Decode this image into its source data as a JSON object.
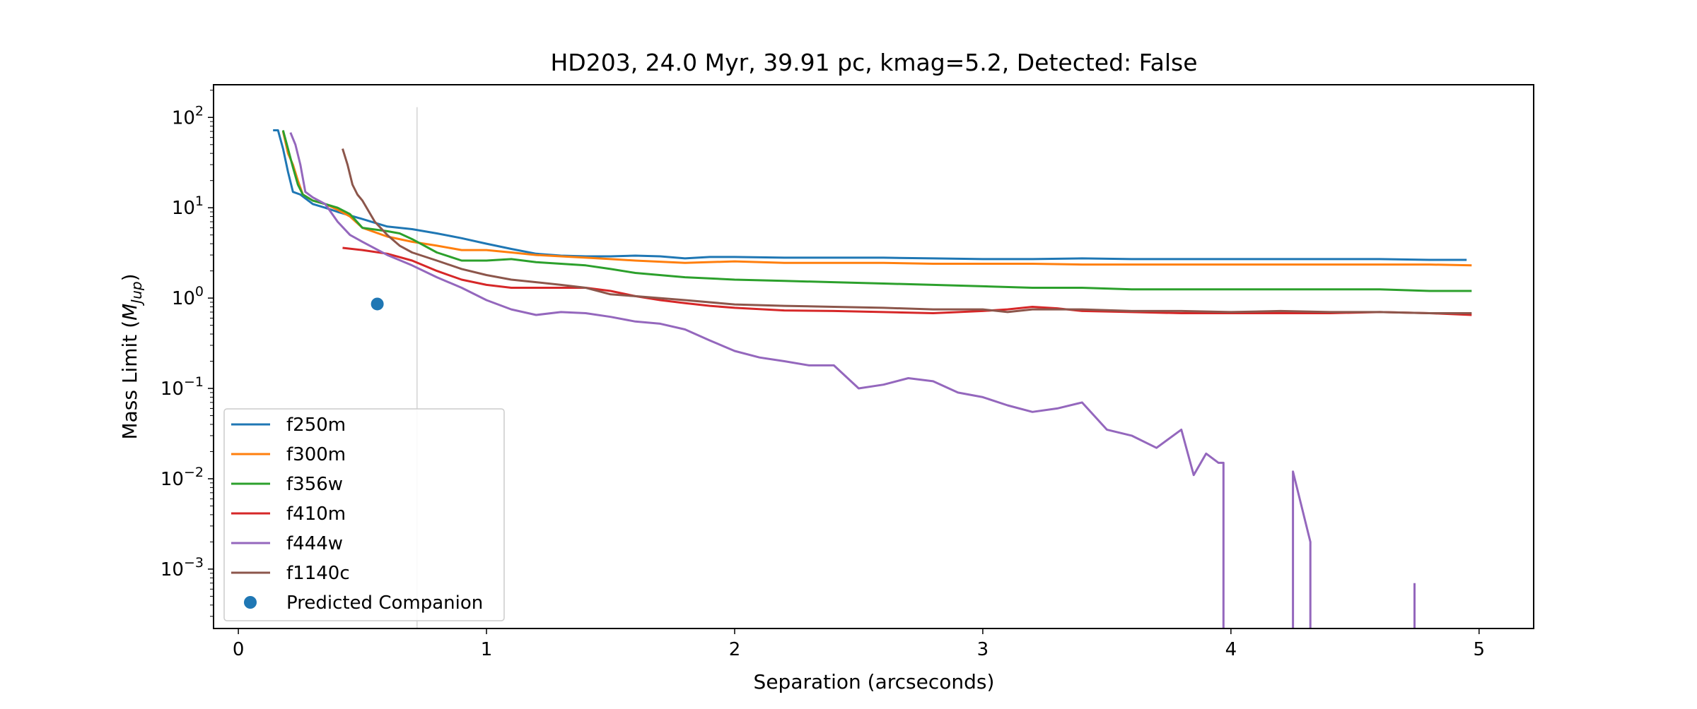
{
  "chart_data": {
    "type": "line",
    "title": "HD203, 24.0 Myr, 39.91 pc, kmag=5.2, Detected: False",
    "xlabel": "Separation (arcseconds)",
    "ylabel_main": "Mass Limit (",
    "ylabel_math": "M",
    "ylabel_sub": "Jup",
    "ylabel_close": ")",
    "xlim": [
      -0.1,
      5.22
    ],
    "ylim": [
      0.00022,
      230
    ],
    "yscale": "log",
    "grid": false,
    "legend_position": "lower-left",
    "x_ticks": [
      {
        "value": 0,
        "label": "0"
      },
      {
        "value": 1,
        "label": "1"
      },
      {
        "value": 2,
        "label": "2"
      },
      {
        "value": 3,
        "label": "3"
      },
      {
        "value": 4,
        "label": "4"
      },
      {
        "value": 5,
        "label": "5"
      }
    ],
    "y_ticks": [
      {
        "value": 100,
        "base": "10",
        "exp": "2"
      },
      {
        "value": 10,
        "base": "10",
        "exp": "1"
      },
      {
        "value": 1,
        "base": "10",
        "exp": "0"
      },
      {
        "value": 0.1,
        "base": "10",
        "exp": "−1"
      },
      {
        "value": 0.01,
        "base": "10",
        "exp": "−2"
      },
      {
        "value": 0.001,
        "base": "10",
        "exp": "−3"
      }
    ],
    "vline": {
      "x": 0.72,
      "color": "#dddddd"
    },
    "series": [
      {
        "name": "f250m",
        "color": "#1f77b4",
        "x": [
          0.14,
          0.16,
          0.18,
          0.2,
          0.22,
          0.25,
          0.3,
          0.35,
          0.4,
          0.5,
          0.6,
          0.7,
          0.8,
          0.9,
          1.0,
          1.1,
          1.2,
          1.3,
          1.4,
          1.5,
          1.6,
          1.7,
          1.8,
          1.9,
          2.0,
          2.2,
          2.4,
          2.6,
          2.8,
          3.0,
          3.2,
          3.4,
          3.6,
          3.8,
          4.0,
          4.2,
          4.4,
          4.6,
          4.8,
          4.95
        ],
        "y": [
          72,
          72,
          45,
          25,
          15,
          14,
          11,
          10,
          9.0,
          7.5,
          6.2,
          5.8,
          5.2,
          4.6,
          4.0,
          3.5,
          3.1,
          2.95,
          2.9,
          2.9,
          2.95,
          2.9,
          2.75,
          2.85,
          2.85,
          2.8,
          2.8,
          2.8,
          2.75,
          2.7,
          2.7,
          2.75,
          2.7,
          2.7,
          2.7,
          2.7,
          2.7,
          2.7,
          2.65,
          2.65
        ]
      },
      {
        "name": "f300m",
        "color": "#ff7f0e",
        "x": [
          0.18,
          0.2,
          0.22,
          0.24,
          0.26,
          0.3,
          0.35,
          0.4,
          0.45,
          0.5,
          0.6,
          0.7,
          0.8,
          0.9,
          1.0,
          1.1,
          1.2,
          1.3,
          1.4,
          1.5,
          1.6,
          1.8,
          2.0,
          2.2,
          2.4,
          2.6,
          2.8,
          3.0,
          3.2,
          3.4,
          3.6,
          3.8,
          4.0,
          4.2,
          4.4,
          4.6,
          4.8,
          4.97
        ],
        "y": [
          70,
          40,
          30,
          20,
          14,
          12,
          11,
          9.5,
          8.0,
          6.0,
          4.8,
          4.2,
          3.8,
          3.4,
          3.4,
          3.2,
          3.0,
          2.9,
          2.8,
          2.7,
          2.6,
          2.45,
          2.55,
          2.45,
          2.45,
          2.45,
          2.4,
          2.4,
          2.4,
          2.35,
          2.35,
          2.35,
          2.35,
          2.35,
          2.35,
          2.35,
          2.35,
          2.3
        ]
      },
      {
        "name": "f356w",
        "color": "#2ca02c",
        "x": [
          0.18,
          0.2,
          0.22,
          0.24,
          0.26,
          0.3,
          0.35,
          0.4,
          0.45,
          0.5,
          0.6,
          0.65,
          0.7,
          0.8,
          0.9,
          1.0,
          1.1,
          1.2,
          1.3,
          1.4,
          1.5,
          1.6,
          1.8,
          2.0,
          2.2,
          2.4,
          2.6,
          2.8,
          3.0,
          3.2,
          3.4,
          3.6,
          3.8,
          4.0,
          4.2,
          4.4,
          4.6,
          4.8,
          4.97
        ],
        "y": [
          72,
          45,
          28,
          18,
          14,
          12,
          11,
          10,
          8.5,
          6.0,
          5.5,
          5.2,
          4.5,
          3.2,
          2.6,
          2.6,
          2.7,
          2.5,
          2.4,
          2.3,
          2.1,
          1.9,
          1.7,
          1.6,
          1.55,
          1.5,
          1.45,
          1.4,
          1.35,
          1.3,
          1.3,
          1.25,
          1.25,
          1.25,
          1.25,
          1.25,
          1.25,
          1.2,
          1.2
        ]
      },
      {
        "name": "f410m",
        "color": "#d62728",
        "x": [
          0.42,
          0.5,
          0.6,
          0.7,
          0.8,
          0.9,
          1.0,
          1.1,
          1.2,
          1.3,
          1.4,
          1.5,
          1.6,
          1.7,
          1.8,
          1.9,
          2.0,
          2.2,
          2.4,
          2.6,
          2.8,
          3.0,
          3.1,
          3.2,
          3.3,
          3.4,
          3.6,
          3.8,
          4.0,
          4.2,
          4.4,
          4.6,
          4.8,
          4.97
        ],
        "y": [
          3.6,
          3.4,
          3.1,
          2.6,
          2.0,
          1.6,
          1.4,
          1.3,
          1.3,
          1.3,
          1.3,
          1.2,
          1.05,
          0.95,
          0.88,
          0.82,
          0.78,
          0.73,
          0.72,
          0.7,
          0.68,
          0.72,
          0.75,
          0.8,
          0.77,
          0.72,
          0.7,
          0.68,
          0.68,
          0.68,
          0.68,
          0.7,
          0.68,
          0.65
        ]
      },
      {
        "name": "f444w",
        "color": "#9467bd",
        "x": [
          0.21,
          0.23,
          0.25,
          0.27,
          0.3,
          0.35,
          0.4,
          0.45,
          0.5,
          0.6,
          0.7,
          0.8,
          0.9,
          1.0,
          1.1,
          1.2,
          1.3,
          1.4,
          1.5,
          1.6,
          1.7,
          1.8,
          1.9,
          2.0,
          2.1,
          2.2,
          2.3,
          2.4,
          2.5,
          2.6,
          2.7,
          2.8,
          2.9,
          3.0,
          3.1,
          3.2,
          3.3,
          3.4,
          3.5,
          3.6,
          3.7,
          3.8,
          3.85,
          3.9,
          3.95,
          3.97,
          3.97,
          4.25,
          4.25,
          4.32,
          4.32,
          4.74,
          4.74
        ],
        "y": [
          68,
          50,
          30,
          15,
          13,
          11,
          7,
          5,
          4.2,
          3.0,
          2.3,
          1.7,
          1.3,
          0.95,
          0.75,
          0.65,
          0.7,
          0.68,
          0.62,
          0.55,
          0.52,
          0.45,
          0.34,
          0.26,
          0.22,
          0.2,
          0.18,
          0.18,
          0.1,
          0.11,
          0.13,
          0.12,
          0.09,
          0.08,
          0.065,
          0.055,
          0.06,
          0.07,
          0.035,
          0.03,
          0.022,
          0.035,
          0.011,
          0.019,
          0.015,
          0.015,
          0.0002,
          0.0002,
          0.012,
          0.002,
          0.0002,
          0.0002,
          0.0007
        ]
      },
      {
        "name": "f1140c",
        "color": "#8c564b",
        "x": [
          0.42,
          0.44,
          0.46,
          0.48,
          0.5,
          0.55,
          0.6,
          0.65,
          0.7,
          0.8,
          0.9,
          1.0,
          1.1,
          1.2,
          1.3,
          1.4,
          1.5,
          1.6,
          1.8,
          2.0,
          2.2,
          2.4,
          2.6,
          2.8,
          3.0,
          3.1,
          3.2,
          3.4,
          3.6,
          3.8,
          4.0,
          4.2,
          4.4,
          4.6,
          4.8,
          4.97
        ],
        "y": [
          45,
          30,
          18,
          14,
          12,
          7,
          5,
          3.8,
          3.2,
          2.6,
          2.1,
          1.8,
          1.6,
          1.5,
          1.4,
          1.3,
          1.1,
          1.05,
          0.95,
          0.85,
          0.82,
          0.8,
          0.78,
          0.75,
          0.75,
          0.7,
          0.75,
          0.75,
          0.72,
          0.72,
          0.7,
          0.72,
          0.7,
          0.7,
          0.68,
          0.68
        ]
      }
    ],
    "scatter": {
      "name": "Predicted Companion",
      "color": "#1f77b4",
      "x": [
        0.56
      ],
      "y": [
        0.86
      ]
    }
  }
}
